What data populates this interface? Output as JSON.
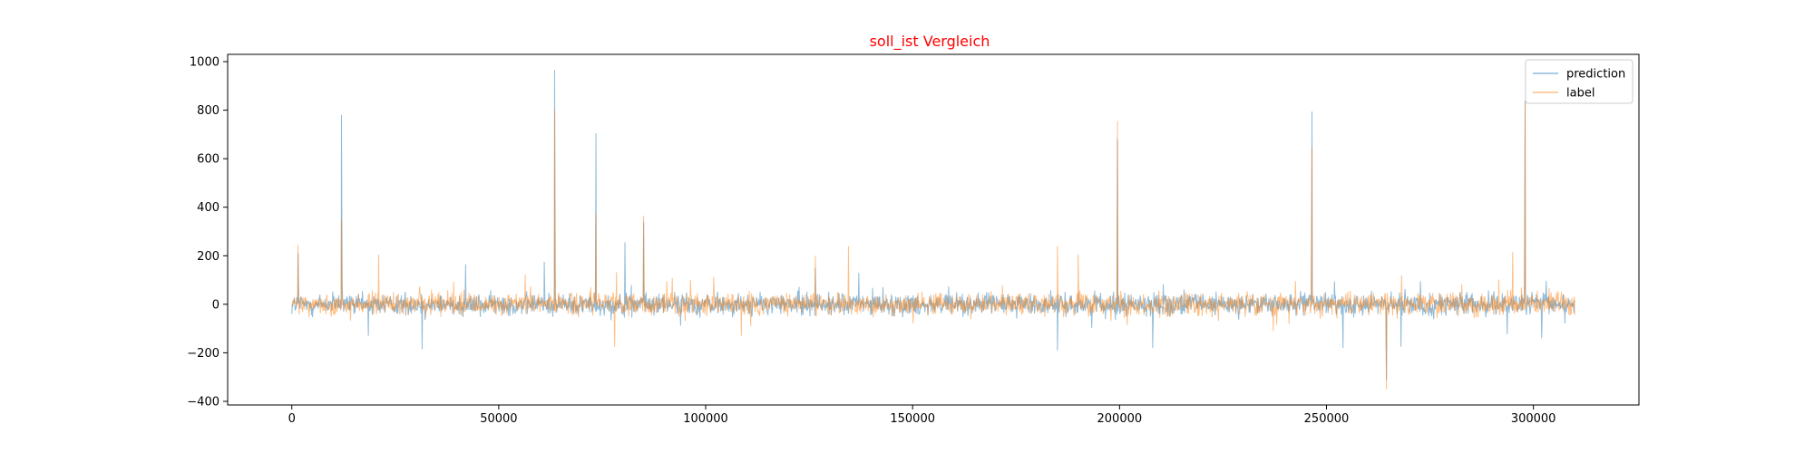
{
  "chart_data": {
    "type": "line",
    "title": "soll_ist Vergleich",
    "title_color": "#ff0000",
    "xlabel": "",
    "ylabel": "",
    "xlim": [
      -15500,
      325500
    ],
    "ylim": [
      -415,
      1030
    ],
    "xticks": [
      0,
      50000,
      100000,
      150000,
      200000,
      250000,
      300000
    ],
    "xtick_labels": [
      "0",
      "50000",
      "100000",
      "150000",
      "200000",
      "250000",
      "300000"
    ],
    "yticks": [
      -400,
      -200,
      0,
      200,
      400,
      600,
      800,
      1000
    ],
    "ytick_labels": [
      "−400",
      "−200",
      "0",
      "200",
      "400",
      "600",
      "800",
      "1000"
    ],
    "grid": false,
    "legend_position": "upper-right",
    "series": [
      {
        "name": "prediction",
        "color": "#1f77b4",
        "alpha": 0.5,
        "x_range": [
          0,
          310000
        ],
        "baseline_amplitude": 40,
        "spikes": [
          {
            "x": 1500,
            "y": 210
          },
          {
            "x": 12000,
            "y": 780
          },
          {
            "x": 18500,
            "y": -130
          },
          {
            "x": 31500,
            "y": -185
          },
          {
            "x": 42000,
            "y": 165
          },
          {
            "x": 61000,
            "y": 175
          },
          {
            "x": 63500,
            "y": 965
          },
          {
            "x": 73500,
            "y": 705
          },
          {
            "x": 80500,
            "y": 255
          },
          {
            "x": 85000,
            "y": 340
          },
          {
            "x": 126500,
            "y": 150
          },
          {
            "x": 137000,
            "y": 130
          },
          {
            "x": 185000,
            "y": -190
          },
          {
            "x": 199500,
            "y": 680
          },
          {
            "x": 208000,
            "y": -180
          },
          {
            "x": 246500,
            "y": 795
          },
          {
            "x": 254000,
            "y": -180
          },
          {
            "x": 264500,
            "y": -310
          },
          {
            "x": 268000,
            "y": -175
          },
          {
            "x": 298000,
            "y": 840
          },
          {
            "x": 302000,
            "y": -140
          }
        ]
      },
      {
        "name": "label",
        "color": "#ff7f0e",
        "alpha": 0.5,
        "x_range": [
          0,
          310000
        ],
        "baseline_amplitude": 40,
        "spikes": [
          {
            "x": 1500,
            "y": 245
          },
          {
            "x": 12000,
            "y": 350
          },
          {
            "x": 21000,
            "y": 205
          },
          {
            "x": 63500,
            "y": 800
          },
          {
            "x": 73500,
            "y": 370
          },
          {
            "x": 78000,
            "y": -175
          },
          {
            "x": 85000,
            "y": 365
          },
          {
            "x": 126500,
            "y": 200
          },
          {
            "x": 134500,
            "y": 240
          },
          {
            "x": 185000,
            "y": 240
          },
          {
            "x": 190000,
            "y": 205
          },
          {
            "x": 199500,
            "y": 755
          },
          {
            "x": 246500,
            "y": 650
          },
          {
            "x": 264500,
            "y": -350
          },
          {
            "x": 295000,
            "y": 215
          },
          {
            "x": 298000,
            "y": 835
          }
        ]
      }
    ]
  }
}
